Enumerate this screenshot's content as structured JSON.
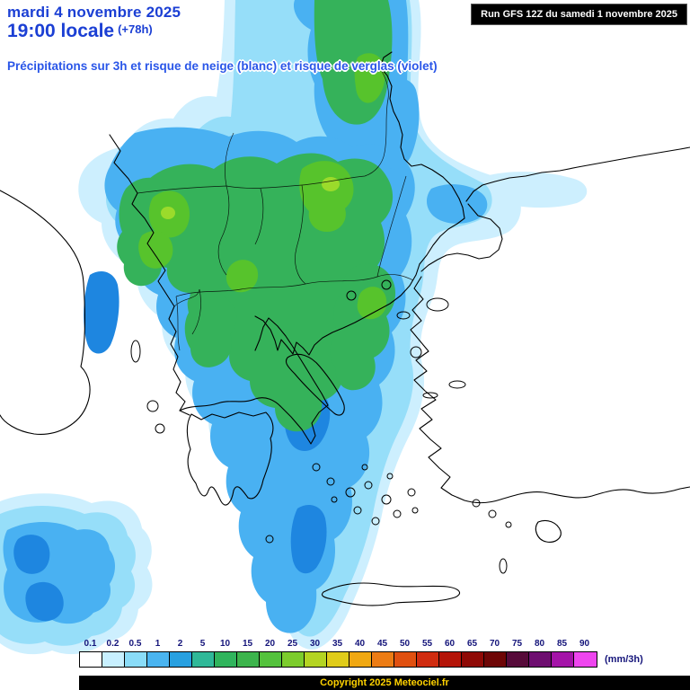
{
  "header": {
    "date": "mardi 4 novembre 2025",
    "time": "19:00 locale",
    "offset": "(+78h)",
    "subtitle": "Précipitations sur 3h et risque de neige (blanc) et risque de verglas (violet)",
    "run_info": "Run GFS 12Z du samedi 1 novembre 2025"
  },
  "legend": {
    "values": [
      "0.1",
      "0.2",
      "0.5",
      "1",
      "2",
      "5",
      "10",
      "15",
      "20",
      "25",
      "30",
      "35",
      "40",
      "45",
      "50",
      "55",
      "60",
      "65",
      "70",
      "75",
      "80",
      "85",
      "90"
    ],
    "colors": [
      "#ffffff",
      "#c8f0ff",
      "#8adcf8",
      "#4ab4f0",
      "#28a0e0",
      "#30b898",
      "#30b45c",
      "#3cb44c",
      "#54c23c",
      "#7ccc2c",
      "#b4d422",
      "#e0cc1a",
      "#f0a812",
      "#ec7c14",
      "#e05010",
      "#d02c10",
      "#b41408",
      "#8f0a06",
      "#6e0606",
      "#570b3a",
      "#6e0e70",
      "#a414a8",
      "#ee46ee"
    ],
    "unit": "(mm/3h)"
  },
  "map_palette": {
    "pale": "#cdeffe",
    "light": "#96def9",
    "medium": "#49b1f2",
    "deep": "#1e86e0",
    "green": "#35b25a",
    "bright_green": "#57c32c",
    "lime": "#9bdb2b",
    "coast": "#000000"
  },
  "footer": {
    "copyright": "Copyright 2025 Meteociel.fr"
  }
}
